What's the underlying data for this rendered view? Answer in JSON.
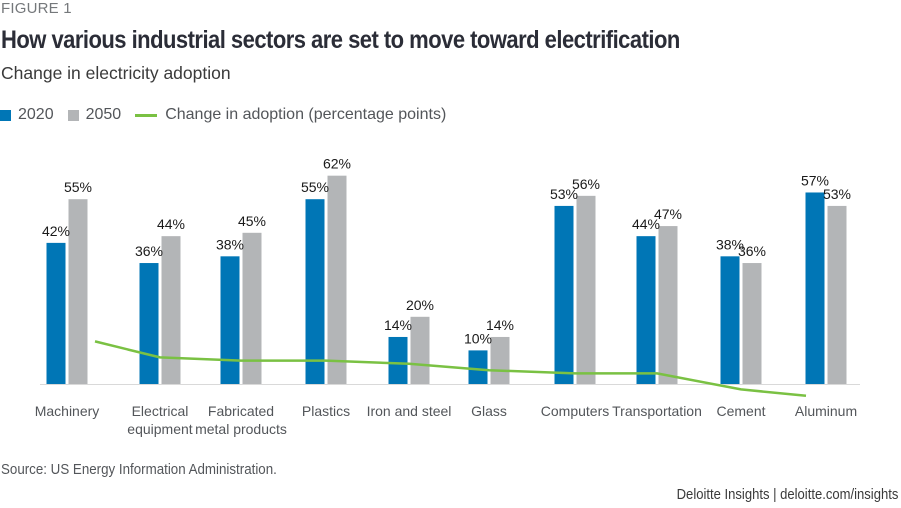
{
  "figure_label": "FIGURE 1",
  "title": "How various industrial sectors are set to move toward electrification",
  "subtitle": "Change in electricity adoption",
  "legend": [
    {
      "label": "2020",
      "type": "bar",
      "color": "#0076b6"
    },
    {
      "label": "2050",
      "type": "bar",
      "color": "#b3b5b7"
    },
    {
      "label": "Change in adoption (percentage points)",
      "type": "line",
      "color": "#7ac143"
    }
  ],
  "source": "Source: US Energy Information Administration.",
  "credit": "Deloitte Insights | deloitte.com/insights",
  "chart_data": {
    "type": "bar",
    "title": "How various industrial sectors are set to move toward electrification",
    "subtitle": "Change in electricity adoption",
    "xlabel": "",
    "ylabel": "",
    "ylim": [
      0,
      65
    ],
    "grid": false,
    "legend_position": "top-left",
    "categories": [
      [
        "Machinery"
      ],
      [
        "Electrical",
        "equipment"
      ],
      [
        "Fabricated",
        "metal products"
      ],
      [
        "Plastics"
      ],
      [
        "Iron and steel"
      ],
      [
        "Glass"
      ],
      [
        "Computers"
      ],
      [
        "Transportation"
      ],
      [
        "Cement"
      ],
      [
        "Aluminum"
      ]
    ],
    "series": [
      {
        "name": "2020",
        "type": "bar",
        "color": "#0076b6",
        "values": [
          42,
          36,
          38,
          55,
          14,
          10,
          53,
          44,
          38,
          57
        ],
        "labels": [
          "42%",
          "36%",
          "38%",
          "55%",
          "14%",
          "10%",
          "53%",
          "44%",
          "38%",
          "57%"
        ]
      },
      {
        "name": "2050",
        "type": "bar",
        "color": "#b3b5b7",
        "values": [
          55,
          44,
          45,
          62,
          20,
          14,
          56,
          47,
          36,
          53
        ],
        "labels": [
          "55%",
          "44%",
          "45%",
          "62%",
          "20%",
          "14%",
          "56%",
          "47%",
          "36%",
          "53%"
        ]
      },
      {
        "name": "Change in adoption (percentage points)",
        "type": "line",
        "color": "#7ac143",
        "values": [
          13,
          8,
          7,
          7,
          6,
          4,
          3,
          3,
          -2,
          -4
        ]
      }
    ]
  }
}
